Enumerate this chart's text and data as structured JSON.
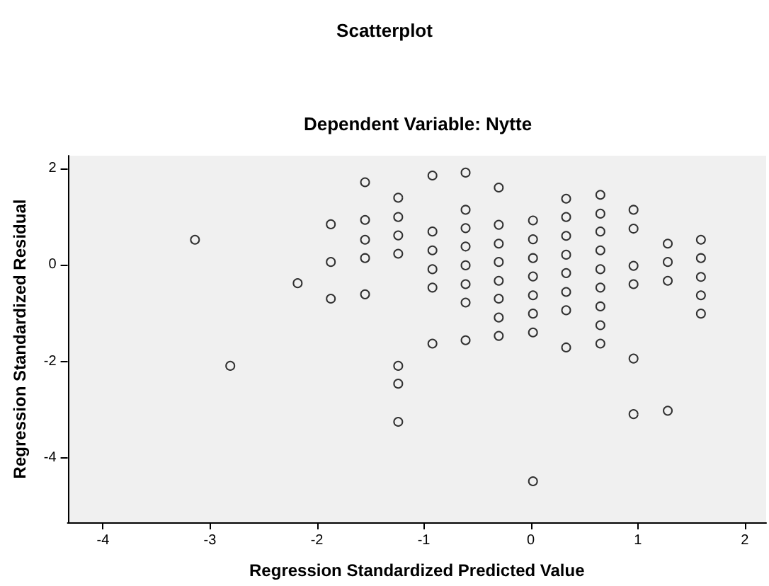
{
  "chart_data": {
    "type": "scatter",
    "title": "Scatterplot",
    "subtitle": "Dependent Variable: Nytte",
    "xlabel": "Regression Standardized Predicted Value",
    "ylabel": "Regression Standardized Residual",
    "marker": "circle",
    "grid": false,
    "xlim": [
      -4.33,
      2.2
    ],
    "xticks": [
      -4,
      -3,
      -2,
      -1,
      0,
      1,
      2
    ],
    "ylim": [
      -5.33,
      2.26
    ],
    "yticks": [
      -4,
      -2,
      0,
      2
    ],
    "series": [
      {
        "color": "#000000",
        "x": [
          -3.14,
          -2.81,
          -2.18,
          -1.87,
          -1.87,
          -1.87,
          -1.55,
          -1.55,
          -1.55,
          -1.55,
          -1.55,
          -1.24,
          -1.24,
          -1.24,
          -1.24,
          -1.24,
          -1.24,
          -1.24,
          -0.92,
          -0.92,
          -0.92,
          -0.92,
          -0.92,
          -0.92,
          -0.61,
          -0.61,
          -0.61,
          -0.61,
          -0.61,
          -0.61,
          -0.61,
          -0.61,
          -0.3,
          -0.3,
          -0.3,
          -0.3,
          -0.3,
          -0.3,
          -0.3,
          -0.3,
          0.02,
          0.02,
          0.02,
          0.02,
          0.02,
          0.02,
          0.02,
          0.02,
          0.33,
          0.33,
          0.33,
          0.33,
          0.33,
          0.33,
          0.33,
          0.33,
          0.65,
          0.65,
          0.65,
          0.65,
          0.65,
          0.65,
          0.65,
          0.65,
          0.65,
          0.96,
          0.96,
          0.96,
          0.96,
          0.96,
          0.96,
          1.28,
          1.28,
          1.28,
          1.28,
          1.59,
          1.59,
          1.59,
          1.59,
          1.59
        ],
        "values": [
          0.52,
          -2.09,
          -0.38,
          0.84,
          0.06,
          -0.7,
          1.71,
          0.93,
          0.52,
          0.14,
          -0.61,
          1.39,
          0.99,
          0.61,
          0.23,
          -2.09,
          -2.46,
          -3.25,
          1.85,
          0.69,
          0.3,
          -0.09,
          -0.47,
          -1.63,
          1.91,
          1.14,
          0.76,
          0.38,
          -0.01,
          -0.4,
          -0.78,
          -1.56,
          1.6,
          0.83,
          0.44,
          0.06,
          -0.33,
          -0.7,
          -1.09,
          -1.47,
          0.92,
          0.53,
          0.14,
          -0.24,
          -0.63,
          -1.01,
          -1.4,
          -4.48,
          1.37,
          0.99,
          0.6,
          0.21,
          -0.17,
          -0.56,
          -0.94,
          -1.71,
          1.45,
          1.06,
          0.69,
          0.3,
          -0.09,
          -0.47,
          -0.86,
          -1.25,
          -1.63,
          1.14,
          0.75,
          -0.02,
          -0.4,
          -1.94,
          -3.09,
          0.44,
          0.06,
          -0.33,
          -3.02,
          0.52,
          0.14,
          -0.25,
          -0.63,
          -1.01
        ]
      }
    ]
  }
}
